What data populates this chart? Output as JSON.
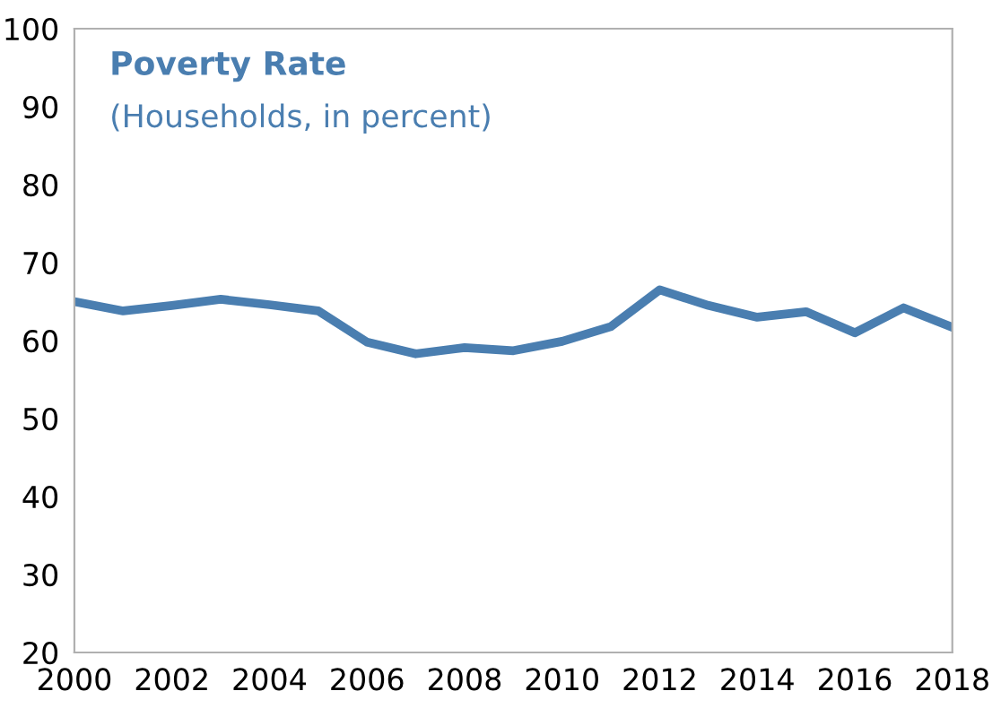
{
  "chart_data": {
    "type": "line",
    "title": "Poverty Rate",
    "subtitle": "(Households, in percent)",
    "x": [
      2000,
      2001,
      2002,
      2003,
      2004,
      2005,
      2006,
      2007,
      2008,
      2009,
      2010,
      2011,
      2012,
      2013,
      2014,
      2015,
      2016,
      2017,
      2018
    ],
    "series": [
      {
        "color": "#4a7eb0",
        "values": [
          65,
          63.8,
          64.5,
          65.3,
          64.6,
          63.8,
          59.8,
          58.3,
          59.1,
          58.7,
          59.9,
          61.8,
          66.5,
          64.5,
          63,
          63.7,
          61,
          64.2,
          61.7
        ]
      }
    ],
    "xlim": [
      2000,
      2018
    ],
    "xticks": [
      2000,
      2002,
      2004,
      2006,
      2008,
      2010,
      2012,
      2014,
      2016,
      2018
    ],
    "ylim": [
      20,
      100
    ],
    "yticks": [
      20,
      30,
      40,
      50,
      60,
      70,
      80,
      90,
      100
    ],
    "grid": false,
    "legend": false,
    "marker": "none",
    "line_style": "solid"
  }
}
